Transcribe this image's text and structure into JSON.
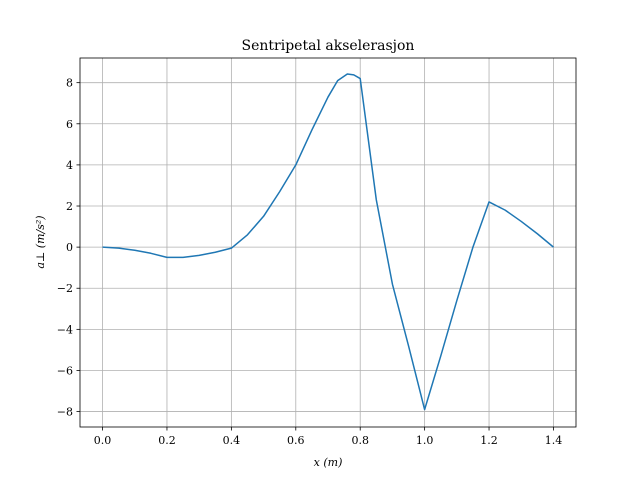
{
  "chart_data": {
    "type": "line",
    "title": "Sentripetal akselerasjon",
    "xlabel": "x (m)",
    "ylabel": "a⊥ (m/s²)",
    "xlim": [
      -0.07,
      1.47
    ],
    "ylim": [
      -8.75,
      9.2
    ],
    "grid": true,
    "xticks": [
      0.0,
      0.2,
      0.4,
      0.6,
      0.8,
      1.0,
      1.2,
      1.4
    ],
    "xtick_labels": [
      "0.0",
      "0.2",
      "0.4",
      "0.6",
      "0.8",
      "1.0",
      "1.2",
      "1.4"
    ],
    "yticks": [
      -8,
      -6,
      -4,
      -2,
      0,
      2,
      4,
      6,
      8
    ],
    "ytick_labels": [
      "−8",
      "−6",
      "−4",
      "−2",
      "0",
      "2",
      "4",
      "6",
      "8"
    ],
    "series": [
      {
        "color": "#1f77b4",
        "x": [
          0.0,
          0.05,
          0.1,
          0.15,
          0.2,
          0.25,
          0.3,
          0.35,
          0.4,
          0.45,
          0.5,
          0.55,
          0.6,
          0.65,
          0.7,
          0.73,
          0.76,
          0.78,
          0.8,
          0.85,
          0.9,
          0.95,
          1.0,
          1.05,
          1.1,
          1.15,
          1.2,
          1.25,
          1.3,
          1.35,
          1.4
        ],
        "y": [
          0.0,
          -0.05,
          -0.15,
          -0.3,
          -0.5,
          -0.5,
          -0.4,
          -0.25,
          -0.05,
          0.6,
          1.5,
          2.7,
          4.0,
          5.7,
          7.3,
          8.1,
          8.42,
          8.38,
          8.2,
          2.3,
          -1.8,
          -4.8,
          -7.9,
          -5.3,
          -2.6,
          0.0,
          2.2,
          1.8,
          1.25,
          0.65,
          0.0
        ]
      }
    ]
  }
}
